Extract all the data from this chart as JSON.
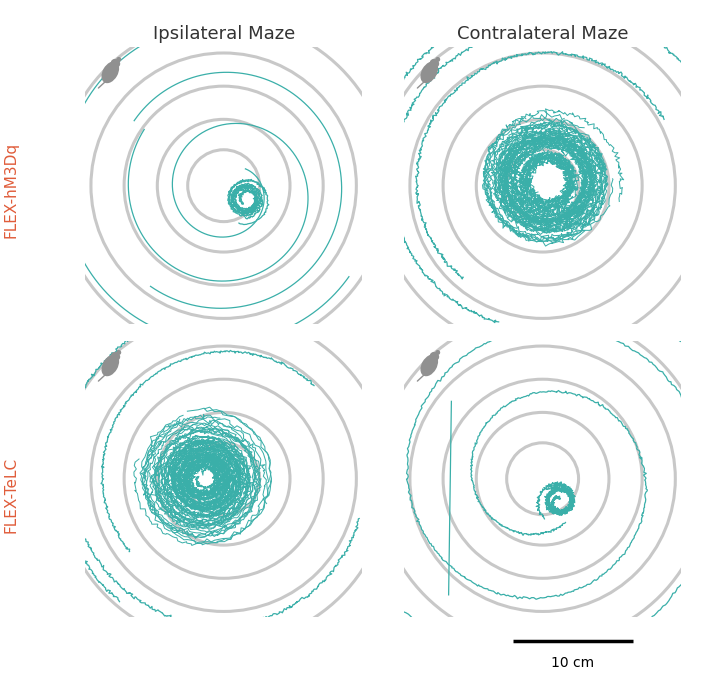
{
  "title_left": "Ipsilateral Maze",
  "title_right": "Contralateral Maze",
  "label_top": "FLEX-hM3Dq",
  "label_bottom": "FLEX-TeLC",
  "track_color": "#3aafa9",
  "ring_color": "#c8c8c8",
  "bg_color": "#ffffff",
  "ring_radii": [
    0.13,
    0.24,
    0.36,
    0.48,
    0.6,
    0.72,
    0.84
  ],
  "ring_lw": 2.2,
  "track_lw": 0.9,
  "mouse_color": "#909090"
}
